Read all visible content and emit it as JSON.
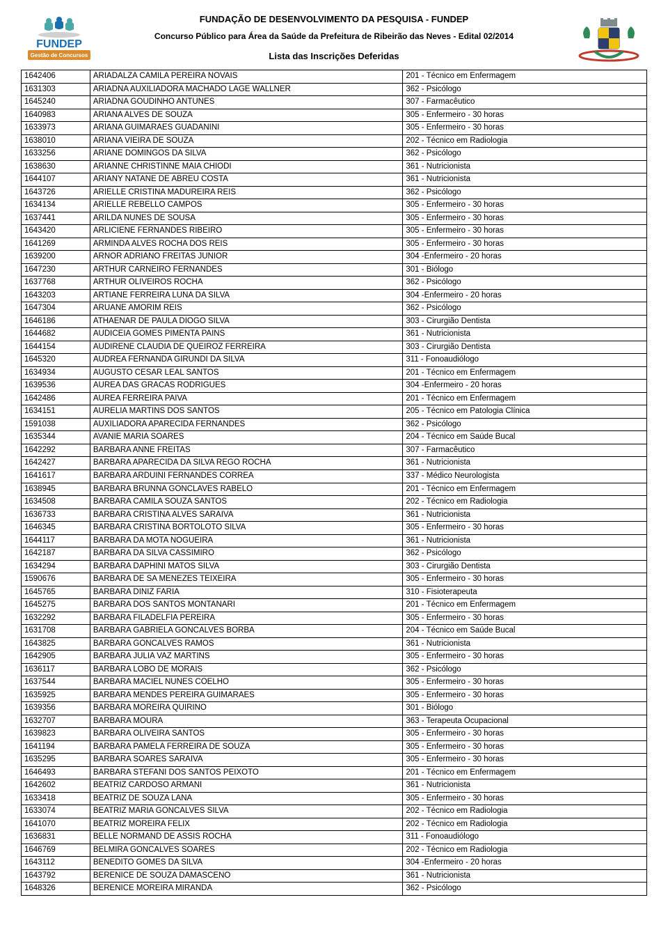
{
  "header": {
    "org": "FUNDAÇÃO DE DESENVOLVIMENTO DA PESQUISA - FUNDEP",
    "subtitle": "Concurso Público para Área da Saúde da Prefeitura de Ribeirão das Neves - Edital 02/2014",
    "list_title": "Lista das Inscrições Deferidas"
  },
  "logo_left": {
    "brand_text": "FUNDEP",
    "tagline": "Gestão de Concursos",
    "blue": "#1a6fb0",
    "teal": "#4aa8a8",
    "orange": "#d98b2e"
  },
  "logo_right": {
    "red": "#c0392b",
    "yellow": "#f1c40f",
    "navy": "#2c3e6e",
    "green": "#2e8b57",
    "gray": "#7f8c8d"
  },
  "table": {
    "border_color": "#000000",
    "rows": [
      [
        "1642406",
        "ARIADALZA CAMILA PEREIRA NOVAIS",
        "201 - Técnico em Enfermagem"
      ],
      [
        "1631303",
        "ARIADNA AUXILIADORA MACHADO LAGE WALLNER",
        "362 - Psicólogo"
      ],
      [
        "1645240",
        "ARIADNA GOUDINHO ANTUNES",
        "307 - Farmacêutico"
      ],
      [
        "1640983",
        "ARIANA ALVES DE SOUZA",
        "305 - Enfermeiro - 30 horas"
      ],
      [
        "1633973",
        "ARIANA GUIMARAES GUADANINI",
        "305 - Enfermeiro - 30 horas"
      ],
      [
        "1638010",
        "ARIANA VIEIRA DE SOUZA",
        "202 - Técnico em Radiologia"
      ],
      [
        "1633256",
        "ARIANE DOMINGOS DA SILVA",
        "362 - Psicólogo"
      ],
      [
        "1638630",
        "ARIANNE CHRISTINNE MAIA CHIODI",
        "361 - Nutricionista"
      ],
      [
        "1644107",
        "ARIANY NATANE DE ABREU COSTA",
        "361 - Nutricionista"
      ],
      [
        "1643726",
        "ARIELLE CRISTINA MADUREIRA REIS",
        "362 - Psicólogo"
      ],
      [
        "1634134",
        "ARIELLE REBELLO CAMPOS",
        "305 - Enfermeiro - 30 horas"
      ],
      [
        "1637441",
        "ARILDA NUNES DE SOUSA",
        "305 - Enfermeiro - 30 horas"
      ],
      [
        "1643420",
        "ARLICIENE FERNANDES RIBEIRO",
        "305 - Enfermeiro - 30 horas"
      ],
      [
        "1641269",
        "ARMINDA ALVES ROCHA DOS REIS",
        "305 - Enfermeiro - 30 horas"
      ],
      [
        "1639200",
        "ARNOR ADRIANO FREITAS JUNIOR",
        "304 -Enfermeiro - 20 horas"
      ],
      [
        "1647230",
        "ARTHUR CARNEIRO FERNANDES",
        "301 - Biólogo"
      ],
      [
        "1637768",
        "ARTHUR OLIVEIROS ROCHA",
        "362 - Psicólogo"
      ],
      [
        "1643203",
        "ARTIANE FERREIRA LUNA DA SILVA",
        "304 -Enfermeiro - 20 horas"
      ],
      [
        "1647304",
        "ARUANE AMORIM REIS",
        "362 - Psicólogo"
      ],
      [
        "1646186",
        "ATHAENAR DE PAULA DIOGO SILVA",
        "303 - Cirurgião Dentista"
      ],
      [
        "1644682",
        "AUDICEIA GOMES PIMENTA PAINS",
        "361 - Nutricionista"
      ],
      [
        "1644154",
        "AUDIRENE CLAUDIA DE QUEIROZ FERREIRA",
        "303 - Cirurgião Dentista"
      ],
      [
        "1645320",
        "AUDREA FERNANDA GIRUNDI DA SILVA",
        "311 - Fonoaudiólogo"
      ],
      [
        "1634934",
        "AUGUSTO CESAR LEAL SANTOS",
        "201 - Técnico em Enfermagem"
      ],
      [
        "1639536",
        "AUREA DAS GRACAS RODRIGUES",
        "304 -Enfermeiro - 20 horas"
      ],
      [
        "1642486",
        "AUREA FERREIRA PAIVA",
        "201 - Técnico em Enfermagem"
      ],
      [
        "1634151",
        "AURELIA MARTINS DOS SANTOS",
        "205 - Técnico em Patologia Clínica"
      ],
      [
        "1591038",
        "AUXILIADORA APARECIDA FERNANDES",
        "362 - Psicólogo"
      ],
      [
        "1635344",
        "AVANIE MARIA SOARES",
        "204 - Técnico em Saúde Bucal"
      ],
      [
        "1642292",
        "BARBARA ANNE FREITAS",
        "307 - Farmacêutico"
      ],
      [
        "1642427",
        "BARBARA APARECIDA DA SILVA REGO ROCHA",
        "361 - Nutricionista"
      ],
      [
        "1641617",
        "BARBARA ARDUINI FERNANDES CORREA",
        "337 - Médico Neurologista"
      ],
      [
        "1638945",
        "BARBARA BRUNNA GONCLAVES RABELO",
        "201 - Técnico em Enfermagem"
      ],
      [
        "1634508",
        "BARBARA CAMILA SOUZA SANTOS",
        "202 - Técnico em Radiologia"
      ],
      [
        "1636733",
        "BARBARA CRISTINA ALVES SARAIVA",
        "361 - Nutricionista"
      ],
      [
        "1646345",
        "BARBARA CRISTINA BORTOLOTO SILVA",
        "305 - Enfermeiro - 30 horas"
      ],
      [
        "1644117",
        "BARBARA DA MOTA NOGUEIRA",
        "361 - Nutricionista"
      ],
      [
        "1642187",
        "BARBARA DA SILVA CASSIMIRO",
        "362 - Psicólogo"
      ],
      [
        "1634294",
        "BARBARA DAPHINI MATOS SILVA",
        "303 - Cirurgião Dentista"
      ],
      [
        "1590676",
        "BARBARA DE SA MENEZES TEIXEIRA",
        "305 - Enfermeiro - 30 horas"
      ],
      [
        "1645765",
        "BARBARA DINIZ FARIA",
        "310 - Fisioterapeuta"
      ],
      [
        "1645275",
        "BARBARA DOS SANTOS MONTANARI",
        "201 - Técnico em Enfermagem"
      ],
      [
        "1632292",
        "BARBARA FILADELFIA PEREIRA",
        "305 - Enfermeiro - 30 horas"
      ],
      [
        "1631708",
        "BARBARA GABRIELA GONCALVES BORBA",
        "204 - Técnico em Saúde Bucal"
      ],
      [
        "1643825",
        "BARBARA GONCALVES RAMOS",
        "361 - Nutricionista"
      ],
      [
        "1642905",
        "BARBARA JULIA VAZ MARTINS",
        "305 - Enfermeiro - 30 horas"
      ],
      [
        "1636117",
        "BARBARA LOBO DE MORAIS",
        "362 - Psicólogo"
      ],
      [
        "1637544",
        "BARBARA MACIEL NUNES COELHO",
        "305 - Enfermeiro - 30 horas"
      ],
      [
        "1635925",
        "BARBARA MENDES PEREIRA GUIMARAES",
        "305 - Enfermeiro - 30 horas"
      ],
      [
        "1639356",
        "BARBARA MOREIRA QUIRINO",
        "301 - Biólogo"
      ],
      [
        "1632707",
        "BARBARA MOURA",
        "363 - Terapeuta Ocupacional"
      ],
      [
        "1639823",
        "BARBARA OLIVEIRA SANTOS",
        "305 - Enfermeiro - 30 horas"
      ],
      [
        "1641194",
        "BARBARA PAMELA FERREIRA DE SOUZA",
        "305 - Enfermeiro - 30 horas"
      ],
      [
        "1635295",
        "BARBARA SOARES SARAIVA",
        "305 - Enfermeiro - 30 horas"
      ],
      [
        "1646493",
        "BARBARA STEFANI DOS SANTOS PEIXOTO",
        "201 - Técnico em Enfermagem"
      ],
      [
        "1642602",
        "BEATRIZ CARDOSO ARMANI",
        "361 - Nutricionista"
      ],
      [
        "1633418",
        "BEATRIZ DE SOUZA LANA",
        "305 - Enfermeiro - 30 horas"
      ],
      [
        "1633074",
        "BEATRIZ MARIA GONCALVES SILVA",
        "202 - Técnico em Radiologia"
      ],
      [
        "1641070",
        "BEATRIZ MOREIRA FELIX",
        "202 - Técnico em Radiologia"
      ],
      [
        "1636831",
        "BELLE NORMAND DE ASSIS ROCHA",
        "311 - Fonoaudiólogo"
      ],
      [
        "1646769",
        "BELMIRA GONCALVES SOARES",
        "202 - Técnico em Radiologia"
      ],
      [
        "1643112",
        "BENEDITO GOMES DA SILVA",
        "304 -Enfermeiro - 20 horas"
      ],
      [
        "1643792",
        "BERENICE DE SOUZA DAMASCENO",
        "361 - Nutricionista"
      ],
      [
        "1648326",
        "BERENICE MOREIRA MIRANDA",
        "362 - Psicólogo"
      ]
    ]
  }
}
